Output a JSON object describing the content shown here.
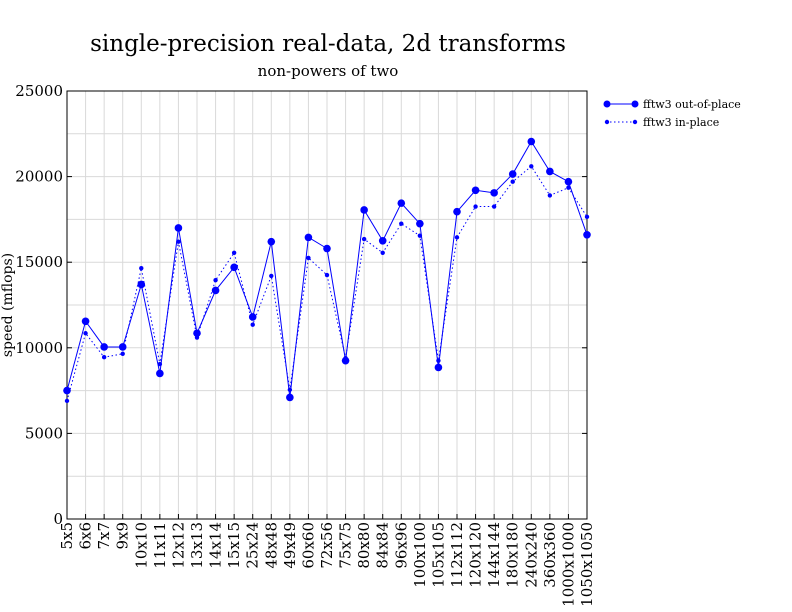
{
  "chart_data": {
    "type": "line",
    "title": "single-precision real-data, 2d transforms",
    "subtitle": "non-powers of two",
    "ylabel": "speed (mflops)",
    "ylim": [
      0,
      25000
    ],
    "yticks": [
      "0",
      "5000",
      "10000",
      "15000",
      "20000",
      "25000"
    ],
    "grid": true,
    "legend_position": "top-right",
    "categories": [
      "5x5",
      "6x6",
      "7x7",
      "9x9",
      "10x10",
      "11x11",
      "12x12",
      "13x13",
      "14x14",
      "15x15",
      "25x24",
      "48x48",
      "49x49",
      "60x60",
      "72x56",
      "75x75",
      "80x80",
      "84x84",
      "96x96",
      "100x100",
      "105x105",
      "112x112",
      "120x120",
      "144x144",
      "180x180",
      "240x240",
      "360x360",
      "1000x1000",
      "1050x1050"
    ],
    "series": [
      {
        "name": "fftw3 out-of-place",
        "color": "#0000ff",
        "style": "solid",
        "values": [
          7500,
          11550,
          10050,
          10050,
          13700,
          8500,
          17000,
          10850,
          13350,
          14700,
          11800,
          16200,
          7100,
          16450,
          15800,
          9250,
          18050,
          16250,
          18450,
          17250,
          8850,
          17950,
          19200,
          19050,
          20150,
          22050,
          20300,
          19700,
          16600
        ]
      },
      {
        "name": "fftw3 in-place",
        "color": "#0000ff",
        "style": "dotted",
        "values": [
          6900,
          10850,
          9450,
          9650,
          14650,
          9050,
          16200,
          10600,
          13950,
          15550,
          11350,
          14200,
          7550,
          15250,
          14250,
          9400,
          16350,
          15550,
          17250,
          16550,
          9250,
          16450,
          18250,
          18250,
          19700,
          20600,
          18900,
          19350,
          17650
        ]
      }
    ]
  }
}
